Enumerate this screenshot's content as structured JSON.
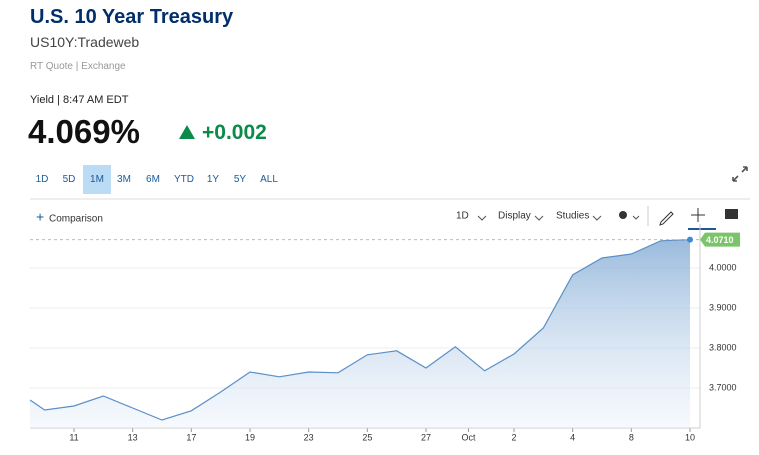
{
  "header": {
    "title": "U.S. 10 Year Treasury",
    "symbol": "US10Y:Tradeweb",
    "quote_source": "RT Quote | Exchange",
    "yield_time": "Yield | 8:47 AM EDT",
    "price": "4.069%",
    "change": "+0.002"
  },
  "ranges": [
    "1D",
    "5D",
    "1M",
    "3M",
    "6M",
    "YTD",
    "1Y",
    "5Y",
    "ALL"
  ],
  "active_range": "1M",
  "toolbar": {
    "comparison": "Comparison",
    "interval": "1D",
    "display": "Display",
    "studies": "Studies"
  },
  "chart_data": {
    "type": "area",
    "x": [
      -0.5,
      0,
      1,
      2,
      3,
      4,
      5,
      6,
      7,
      8,
      9,
      10,
      11,
      12,
      13,
      14,
      15,
      16,
      17,
      18,
      19,
      20,
      21,
      22
    ],
    "xlim": [
      -0.5,
      22
    ],
    "xticks": [
      {
        "value": 1,
        "label": "11"
      },
      {
        "value": 3,
        "label": "13"
      },
      {
        "value": 5,
        "label": "17"
      },
      {
        "value": 7,
        "label": "19"
      },
      {
        "value": 9,
        "label": "23"
      },
      {
        "value": 11,
        "label": "25"
      },
      {
        "value": 13,
        "label": "27"
      },
      {
        "value": 14.45,
        "label": "Oct"
      },
      {
        "value": 16,
        "label": "2"
      },
      {
        "value": 18,
        "label": "4"
      },
      {
        "value": 20,
        "label": "8"
      },
      {
        "value": 22,
        "label": "10"
      }
    ],
    "ylim": [
      3.6,
      4.1
    ],
    "yticks": [
      {
        "value": 3.7,
        "label": "3.7000"
      },
      {
        "value": 3.8,
        "label": "3.8000"
      },
      {
        "value": 3.9,
        "label": "3.9000"
      },
      {
        "value": 4.0,
        "label": "4.0000"
      }
    ],
    "series": [
      {
        "color": "#5b8fc7",
        "values": [
          3.67,
          3.645,
          3.655,
          3.68,
          3.65,
          3.62,
          3.643,
          3.69,
          3.74,
          3.728,
          3.74,
          3.738,
          3.783,
          3.793,
          3.75,
          3.803,
          3.743,
          3.785,
          3.85,
          3.983,
          4.025,
          4.035,
          4.068,
          4.071
        ]
      }
    ],
    "last_label": {
      "value": 4.071,
      "label": "4.0710"
    },
    "grid": true
  }
}
